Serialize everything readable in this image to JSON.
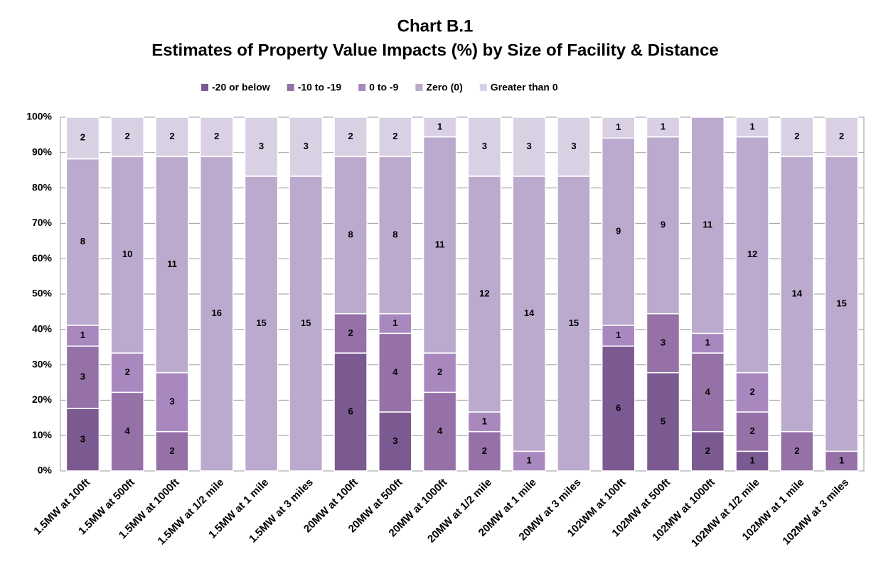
{
  "chart_data": {
    "type": "bar",
    "stacking": "percent",
    "title": "Chart B.1",
    "subtitle": "Estimates of Property Value Impacts (%) by Size of Facility & Distance",
    "categories": [
      "1.5MW at 100ft",
      "1.5MW at 500ft",
      "1.5MW at 1000ft",
      "1.5MW at 1/2 mile",
      "1.5MW at 1 mile",
      "1.5MW at 3 miles",
      "20MW at 100ft",
      "20MW at 500ft",
      "20MW at 1000ft",
      "20MW at 1/2 mile",
      "20MW at 1 mile",
      "20MW at 3 miles",
      "102WM at 100ft",
      "102MW at 500ft",
      "102MW at 1000ft",
      "102MW at 1/2 mile",
      "102MW at 1 mile",
      "102MW at 3 miles"
    ],
    "series": [
      {
        "name": "-20 or below",
        "color": "#7b5a91",
        "values": [
          3,
          0,
          0,
          0,
          0,
          0,
          6,
          3,
          0,
          0,
          0,
          0,
          6,
          5,
          2,
          1,
          0,
          0
        ]
      },
      {
        "name": "-10 to -19",
        "color": "#9571a8",
        "values": [
          3,
          4,
          2,
          0,
          0,
          0,
          2,
          4,
          4,
          2,
          0,
          0,
          0,
          3,
          4,
          2,
          2,
          1
        ]
      },
      {
        "name": "0 to -9",
        "color": "#a988c0",
        "values": [
          1,
          2,
          3,
          0,
          0,
          0,
          0,
          1,
          2,
          1,
          1,
          0,
          1,
          0,
          1,
          2,
          0,
          0
        ]
      },
      {
        "name": "Zero (0)",
        "color": "#bca9ce",
        "values": [
          8,
          10,
          11,
          16,
          15,
          15,
          8,
          8,
          11,
          12,
          14,
          15,
          9,
          9,
          11,
          12,
          14,
          15
        ]
      },
      {
        "name": "Greater than 0",
        "color": "#d9d0e4",
        "values": [
          2,
          2,
          2,
          2,
          3,
          3,
          2,
          2,
          1,
          3,
          3,
          3,
          1,
          1,
          0,
          1,
          2,
          2
        ]
      }
    ],
    "ylim": [
      0,
      100
    ],
    "yticks": [
      {
        "value": 0,
        "label": "0%"
      },
      {
        "value": 10,
        "label": "10%"
      },
      {
        "value": 20,
        "label": "20%"
      },
      {
        "value": 30,
        "label": "30%"
      },
      {
        "value": 40,
        "label": "40%"
      },
      {
        "value": 50,
        "label": "50%"
      },
      {
        "value": 60,
        "label": "60%"
      },
      {
        "value": 70,
        "label": "70%"
      },
      {
        "value": 80,
        "label": "80%"
      },
      {
        "value": 90,
        "label": "90%"
      },
      {
        "value": 100,
        "label": "100%"
      }
    ],
    "grid": true,
    "legend": "top"
  }
}
